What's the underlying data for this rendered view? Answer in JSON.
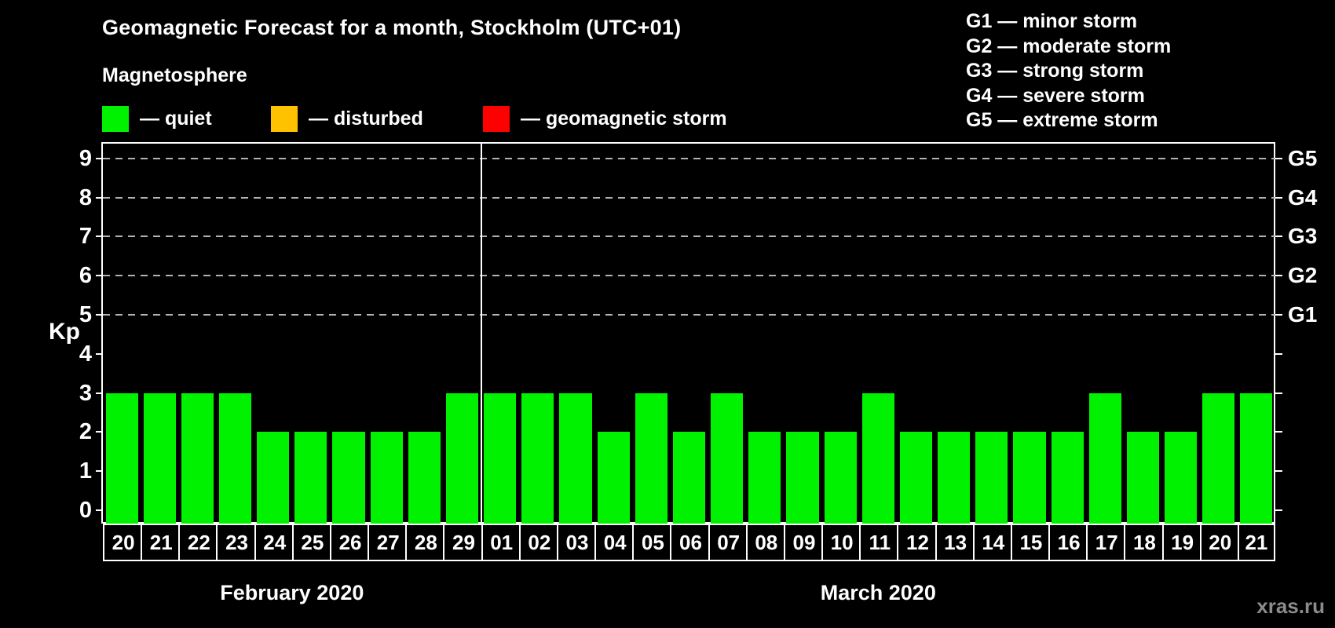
{
  "title": "Geomagnetic Forecast for a month, Stockholm (UTC+01)",
  "subtitle": "Magnetosphere",
  "legend": [
    {
      "name": "quiet",
      "label": "— quiet",
      "color": "#00f200"
    },
    {
      "name": "disturbed",
      "label": "— disturbed",
      "color": "#ffc200"
    },
    {
      "name": "geomagnetic-storm",
      "label": "— geomagnetic storm",
      "color": "#ff0000"
    }
  ],
  "g_scale_legend": [
    "G1 — minor storm",
    "G2 — moderate storm",
    "G3 — strong storm",
    "G4 — severe storm",
    "G5 — extreme storm"
  ],
  "watermark": "xras.ru",
  "chart_data": {
    "type": "bar",
    "title": "Geomagnetic Forecast for a month, Stockholm (UTC+01)",
    "ylabel": "Kp",
    "ylim": [
      -0.35,
      9.7
    ],
    "y_ticks": [
      0,
      1,
      2,
      3,
      4,
      5,
      6,
      7,
      8,
      9
    ],
    "gridlines_at": [
      5,
      6,
      7,
      8,
      9
    ],
    "grid_style": "dashed",
    "legend_position": "top",
    "right_axis_labels": [
      {
        "kp": 5,
        "label": "G1"
      },
      {
        "kp": 6,
        "label": "G2"
      },
      {
        "kp": 7,
        "label": "G3"
      },
      {
        "kp": 8,
        "label": "G4"
      },
      {
        "kp": 9,
        "label": "G5"
      }
    ],
    "bar_color": "#00f200",
    "bar_level": "quiet",
    "groups": [
      {
        "label": "February 2020",
        "days": [
          "20",
          "21",
          "22",
          "23",
          "24",
          "25",
          "26",
          "27",
          "28",
          "29"
        ],
        "values": [
          3,
          3,
          3,
          3,
          2,
          2,
          2,
          2,
          2,
          3
        ]
      },
      {
        "label": "March 2020",
        "days": [
          "01",
          "02",
          "03",
          "04",
          "05",
          "06",
          "07",
          "08",
          "09",
          "10",
          "11",
          "12",
          "13",
          "14",
          "15",
          "16",
          "17",
          "18",
          "19",
          "20",
          "21"
        ],
        "values": [
          3,
          3,
          3,
          2,
          3,
          2,
          3,
          2,
          2,
          2,
          3,
          2,
          2,
          2,
          2,
          2,
          3,
          2,
          2,
          3,
          3
        ]
      }
    ]
  }
}
